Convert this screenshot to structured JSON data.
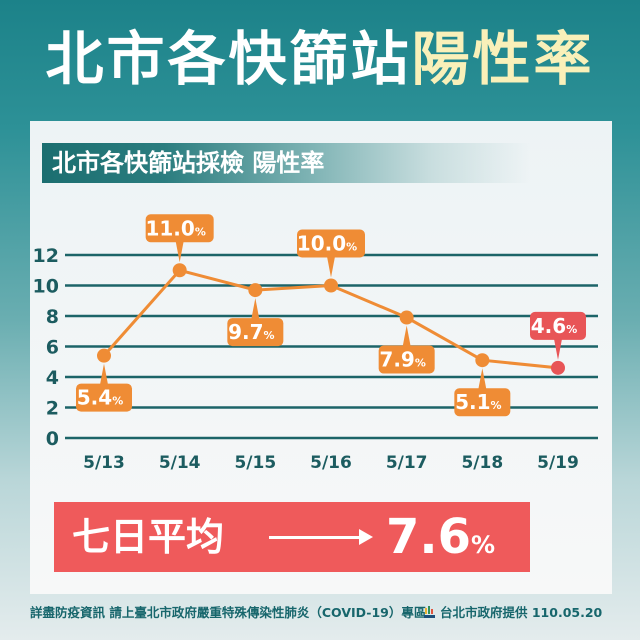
{
  "header": {
    "title_white": "北市各快篩站",
    "title_highlight": "陽性率"
  },
  "panel": {
    "subtitle": "北市各快篩站採檢 陽性率"
  },
  "chart_data": {
    "type": "line",
    "title": "北市各快篩站採檢 陽性率",
    "xlabel": "",
    "ylabel": "",
    "categories": [
      "5/13",
      "5/14",
      "5/15",
      "5/16",
      "5/17",
      "5/18",
      "5/19"
    ],
    "values": [
      5.4,
      11.0,
      9.7,
      10.0,
      7.9,
      5.1,
      4.6
    ],
    "data_labels": [
      "5.4%",
      "11.0%",
      "9.7%",
      "10.0%",
      "7.9%",
      "5.1%",
      "4.6%"
    ],
    "label_positions": [
      "below",
      "above",
      "below",
      "above",
      "below",
      "below",
      "above"
    ],
    "highlight_index": 6,
    "yticks": [
      0,
      2,
      4,
      6,
      8,
      10,
      12
    ],
    "ylim": [
      0,
      12
    ],
    "grid": true,
    "legend": "none",
    "colors": {
      "line": "#ef8c35",
      "highlight": "#e85557",
      "grid": "#1c6468",
      "axis_text": "#1c5c60"
    }
  },
  "average": {
    "label": "七日平均",
    "value": "7.6",
    "unit": "%"
  },
  "footer": {
    "note": "詳盡防疫資訊 請上臺北市政府嚴重特殊傳染性肺炎（COVID-19）專區",
    "credit": "台北市政府提供 110.05.20"
  },
  "colors": {
    "background_top": "#1c8289",
    "title_highlight": "#f9f0b9",
    "avg_box": "#ef5a5b",
    "footer_text": "#17666c"
  }
}
